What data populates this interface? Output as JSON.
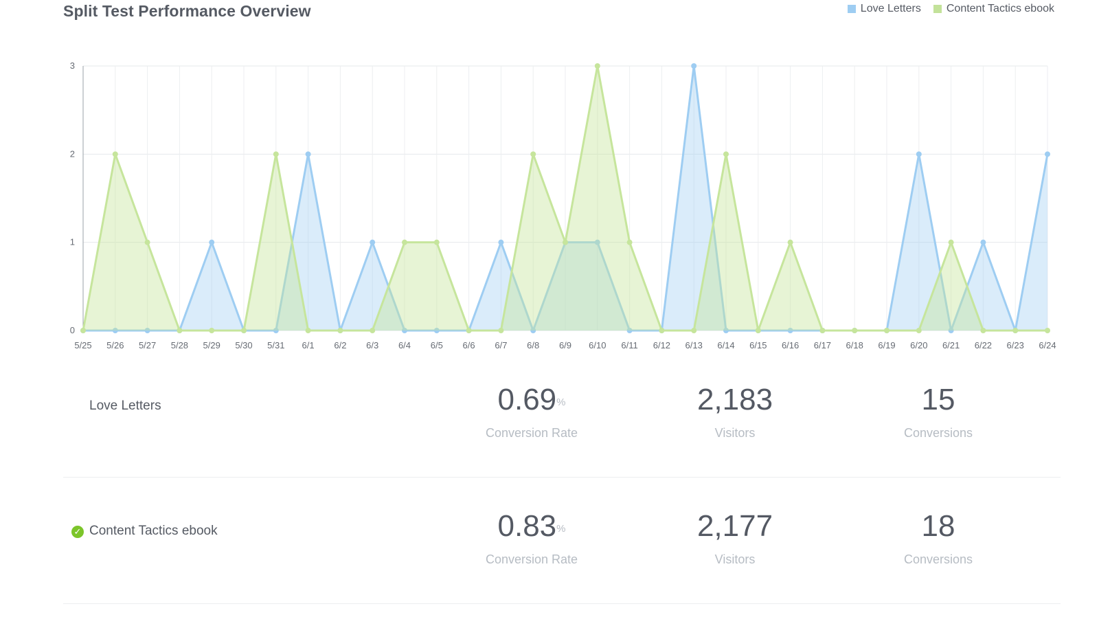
{
  "title": "Split Test Performance Overview",
  "legend": [
    {
      "name": "Love Letters",
      "color": "#9ecdf2"
    },
    {
      "name": "Content Tactics ebook",
      "color": "#c3e29a"
    }
  ],
  "chart_data": {
    "type": "area",
    "categories": [
      "5/25",
      "5/26",
      "5/27",
      "5/28",
      "5/29",
      "5/30",
      "5/31",
      "6/1",
      "6/2",
      "6/3",
      "6/4",
      "6/5",
      "6/6",
      "6/7",
      "6/8",
      "6/9",
      "6/10",
      "6/11",
      "6/12",
      "6/13",
      "6/14",
      "6/15",
      "6/16",
      "6/17",
      "6/18",
      "6/19",
      "6/20",
      "6/21",
      "6/22",
      "6/23",
      "6/24"
    ],
    "ylim": [
      0,
      3
    ],
    "yticks": [
      0,
      1,
      2,
      3
    ],
    "grid": true,
    "legend_position": "top-right",
    "series": [
      {
        "name": "Love Letters",
        "color": "#9ecdf2",
        "fill": "rgba(158,205,242,0.38)",
        "values": [
          0,
          0,
          0,
          0,
          1,
          0,
          0,
          2,
          0,
          1,
          0,
          0,
          0,
          1,
          0,
          1,
          1,
          0,
          0,
          3,
          0,
          0,
          0,
          0,
          0,
          0,
          2,
          0,
          1,
          0,
          2
        ]
      },
      {
        "name": "Content Tactics ebook",
        "color": "#c6e59c",
        "fill": "rgba(198,229,156,0.42)",
        "values": [
          0,
          2,
          1,
          0,
          0,
          0,
          2,
          0,
          0,
          0,
          1,
          1,
          0,
          0,
          2,
          1,
          3,
          1,
          0,
          0,
          2,
          0,
          1,
          0,
          0,
          0,
          0,
          1,
          0,
          0,
          0
        ]
      }
    ]
  },
  "variants": [
    {
      "name": "Love Letters",
      "winner": false,
      "rate": "0.69",
      "rate_unit": "%",
      "rate_label": "Conversion Rate",
      "visitors": "2,183",
      "visitors_label": "Visitors",
      "conversions": "15",
      "conversions_label": "Conversions"
    },
    {
      "name": "Content Tactics ebook",
      "winner": true,
      "rate": "0.83",
      "rate_unit": "%",
      "rate_label": "Conversion Rate",
      "visitors": "2,177",
      "visitors_label": "Visitors",
      "conversions": "18",
      "conversions_label": "Conversions"
    }
  ]
}
